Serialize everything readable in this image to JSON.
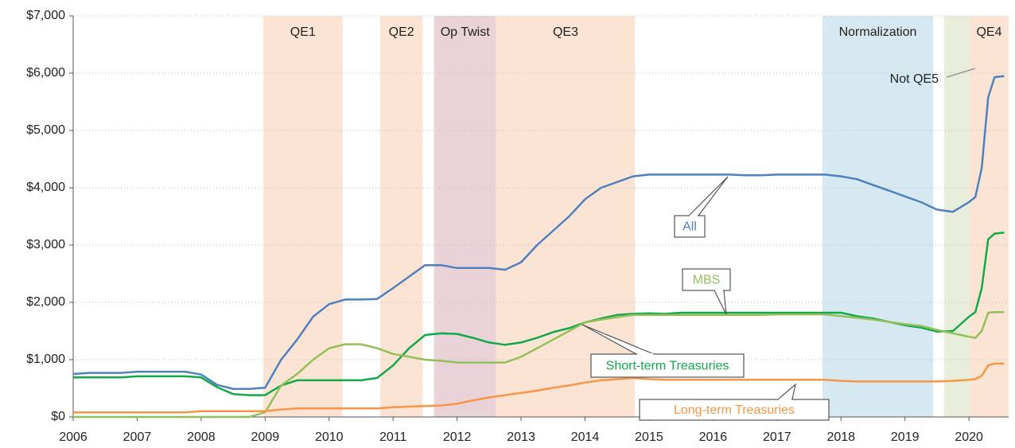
{
  "chart_data": {
    "type": "line",
    "xlim": [
      2006,
      2020.62
    ],
    "xticks": [
      2006,
      2007,
      2008,
      2009,
      2010,
      2011,
      2012,
      2013,
      2014,
      2015,
      2016,
      2017,
      2018,
      2019,
      2020
    ],
    "ylim": [
      0,
      7000
    ],
    "yticks": [
      {
        "value": 0,
        "label": "$0"
      },
      {
        "value": 1000,
        "label": "$1,000"
      },
      {
        "value": 2000,
        "label": "$2,000"
      },
      {
        "value": 3000,
        "label": "$3,000"
      },
      {
        "value": 4000,
        "label": "$4,000"
      },
      {
        "value": 5000,
        "label": "$5,000"
      },
      {
        "value": 6000,
        "label": "$6,000"
      },
      {
        "value": 7000,
        "label": "$7,000"
      }
    ],
    "grid": true,
    "bands": [
      {
        "label": "QE1",
        "start": 2008.97,
        "end": 2010.21,
        "color": "#fce4d4"
      },
      {
        "label": "QE2",
        "start": 2010.8,
        "end": 2011.46,
        "color": "#fce4d4"
      },
      {
        "label": "Op Twist",
        "start": 2011.64,
        "end": 2012.61,
        "color": "#ead3d8"
      },
      {
        "label": "QE3",
        "start": 2012.61,
        "end": 2014.78,
        "color": "#fce4d4"
      },
      {
        "label": "Normalization",
        "start": 2017.71,
        "end": 2019.44,
        "color": "#d6e9f1"
      },
      {
        "label": "Not QE5",
        "start": 2019.61,
        "end": 2020.01,
        "color": "#e8eedb"
      },
      {
        "label": "QE4",
        "start": 2020.01,
        "end": 2020.62,
        "color": "#fce4d4"
      }
    ],
    "x": [
      2006,
      2006.25,
      2006.5,
      2006.75,
      2007,
      2007.25,
      2007.5,
      2007.75,
      2008,
      2008.25,
      2008.5,
      2008.75,
      2009,
      2009.25,
      2009.5,
      2009.75,
      2010,
      2010.25,
      2010.5,
      2010.75,
      2011,
      2011.25,
      2011.5,
      2011.75,
      2012,
      2012.25,
      2012.5,
      2012.75,
      2013,
      2013.25,
      2013.5,
      2013.75,
      2014,
      2014.25,
      2014.5,
      2014.75,
      2015,
      2015.25,
      2015.5,
      2015.75,
      2016,
      2016.25,
      2016.5,
      2016.75,
      2017,
      2017.25,
      2017.5,
      2017.75,
      2018,
      2018.25,
      2018.5,
      2018.75,
      2019,
      2019.25,
      2019.5,
      2019.75,
      2020,
      2020.1,
      2020.2,
      2020.3,
      2020.4,
      2020.55
    ],
    "series": [
      {
        "name": "All",
        "color": "#4f81bd",
        "values": [
          750,
          770,
          770,
          770,
          790,
          790,
          790,
          790,
          740,
          560,
          490,
          490,
          510,
          1000,
          1350,
          1750,
          1970,
          2050,
          2050,
          2060,
          2250,
          2450,
          2650,
          2650,
          2600,
          2600,
          2600,
          2570,
          2700,
          3000,
          3250,
          3500,
          3800,
          4000,
          4100,
          4200,
          4230,
          4230,
          4230,
          4230,
          4230,
          4230,
          4220,
          4220,
          4230,
          4230,
          4230,
          4230,
          4200,
          4150,
          4050,
          3950,
          3850,
          3750,
          3620,
          3580,
          3750,
          3840,
          4350,
          5580,
          5930,
          5950
        ]
      },
      {
        "name": "Short-term Treasuries",
        "color": "#13a84a",
        "values": [
          690,
          690,
          690,
          690,
          710,
          710,
          710,
          710,
          690,
          520,
          400,
          380,
          380,
          550,
          640,
          640,
          640,
          640,
          640,
          680,
          900,
          1200,
          1430,
          1460,
          1450,
          1380,
          1300,
          1260,
          1300,
          1380,
          1480,
          1550,
          1650,
          1720,
          1780,
          1800,
          1810,
          1800,
          1820,
          1820,
          1820,
          1820,
          1820,
          1820,
          1820,
          1820,
          1820,
          1820,
          1820,
          1760,
          1720,
          1660,
          1600,
          1560,
          1490,
          1500,
          1750,
          1830,
          2250,
          3100,
          3200,
          3220
        ]
      },
      {
        "name": "MBS",
        "color": "#93c05b",
        "values": [
          0,
          0,
          0,
          0,
          0,
          0,
          0,
          0,
          0,
          0,
          0,
          0,
          80,
          550,
          750,
          1000,
          1200,
          1270,
          1270,
          1200,
          1100,
          1050,
          1000,
          980,
          950,
          950,
          950,
          950,
          1050,
          1200,
          1350,
          1500,
          1650,
          1700,
          1740,
          1780,
          1780,
          1780,
          1780,
          1780,
          1780,
          1780,
          1780,
          1780,
          1790,
          1790,
          1790,
          1790,
          1760,
          1730,
          1700,
          1660,
          1620,
          1590,
          1520,
          1460,
          1400,
          1380,
          1500,
          1820,
          1830,
          1830
        ]
      },
      {
        "name": "Long-term Treasuries",
        "color": "#f79646",
        "values": [
          80,
          80,
          80,
          80,
          80,
          80,
          80,
          80,
          100,
          100,
          100,
          100,
          100,
          130,
          150,
          150,
          150,
          150,
          150,
          150,
          170,
          180,
          190,
          200,
          230,
          290,
          340,
          380,
          420,
          460,
          510,
          550,
          600,
          640,
          660,
          680,
          660,
          650,
          650,
          650,
          650,
          650,
          650,
          650,
          650,
          650,
          650,
          650,
          630,
          620,
          620,
          620,
          620,
          620,
          620,
          630,
          650,
          660,
          720,
          900,
          930,
          930
        ]
      }
    ]
  }
}
